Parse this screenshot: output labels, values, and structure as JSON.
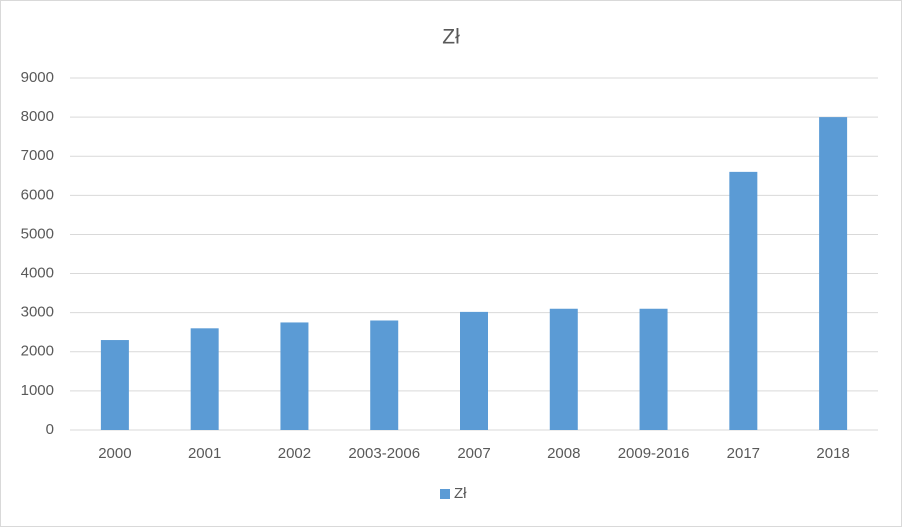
{
  "chart_data": {
    "type": "bar",
    "title": "Zł",
    "categories": [
      "2000",
      "2001",
      "2002",
      "2003-2006",
      "2007",
      "2008",
      "2009-2016",
      "2017",
      "2018"
    ],
    "series": [
      {
        "name": "Zł",
        "color": "#5b9bd5",
        "values": [
          2300,
          2600,
          2750,
          2800,
          3020,
          3100,
          3100,
          6600,
          8000
        ]
      }
    ],
    "ylim": [
      0,
      9000
    ],
    "yticks": [
      0,
      1000,
      2000,
      3000,
      4000,
      5000,
      6000,
      7000,
      8000,
      9000
    ],
    "grid": true,
    "legend": "bottom"
  }
}
